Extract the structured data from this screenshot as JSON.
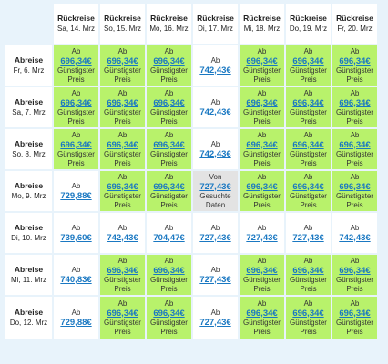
{
  "header": {
    "return_label": "Rückreise",
    "columns": [
      "Sa, 14. Mrz",
      "So, 15. Mrz",
      "Mo, 16. Mrz",
      "Di, 17. Mrz",
      "Mi, 18. Mrz",
      "Do, 19. Mrz",
      "Fr, 20. Mrz"
    ]
  },
  "departure_label": "Abreise",
  "rows": [
    {
      "date": "Fr, 6. Mrz",
      "cells": [
        {
          "prefix": "Ab",
          "price": "696,34€",
          "note": "Günstigster Preis",
          "state": "cheap"
        },
        {
          "prefix": "Ab",
          "price": "696,34€",
          "note": "Günstigster Preis",
          "state": "cheap"
        },
        {
          "prefix": "Ab",
          "price": "696,34€",
          "note": "Günstigster Preis",
          "state": "cheap"
        },
        {
          "prefix": "Ab",
          "price": "742,43€",
          "note": "",
          "state": "normal"
        },
        {
          "prefix": "Ab",
          "price": "696,34€",
          "note": "Günstigster Preis",
          "state": "cheap"
        },
        {
          "prefix": "Ab",
          "price": "696,34€",
          "note": "Günstigster Preis",
          "state": "cheap"
        },
        {
          "prefix": "Ab",
          "price": "696,34€",
          "note": "Günstigster Preis",
          "state": "cheap"
        }
      ]
    },
    {
      "date": "Sa, 7. Mrz",
      "cells": [
        {
          "prefix": "Ab",
          "price": "696,34€",
          "note": "Günstigster Preis",
          "state": "cheap"
        },
        {
          "prefix": "Ab",
          "price": "696,34€",
          "note": "Günstigster Preis",
          "state": "cheap"
        },
        {
          "prefix": "Ab",
          "price": "696,34€",
          "note": "Günstigster Preis",
          "state": "cheap"
        },
        {
          "prefix": "Ab",
          "price": "742,43€",
          "note": "",
          "state": "normal"
        },
        {
          "prefix": "Ab",
          "price": "696,34€",
          "note": "Günstigster Preis",
          "state": "cheap"
        },
        {
          "prefix": "Ab",
          "price": "696,34€",
          "note": "Günstigster Preis",
          "state": "cheap"
        },
        {
          "prefix": "Ab",
          "price": "696,34€",
          "note": "Günstigster Preis",
          "state": "cheap"
        }
      ]
    },
    {
      "date": "So, 8. Mrz",
      "cells": [
        {
          "prefix": "Ab",
          "price": "696,34€",
          "note": "Günstigster Preis",
          "state": "cheap"
        },
        {
          "prefix": "Ab",
          "price": "696,34€",
          "note": "Günstigster Preis",
          "state": "cheap"
        },
        {
          "prefix": "Ab",
          "price": "696,34€",
          "note": "Günstigster Preis",
          "state": "cheap"
        },
        {
          "prefix": "Ab",
          "price": "742,43€",
          "note": "",
          "state": "normal"
        },
        {
          "prefix": "Ab",
          "price": "696,34€",
          "note": "Günstigster Preis",
          "state": "cheap"
        },
        {
          "prefix": "Ab",
          "price": "696,34€",
          "note": "Günstigster Preis",
          "state": "cheap"
        },
        {
          "prefix": "Ab",
          "price": "696,34€",
          "note": "Günstigster Preis",
          "state": "cheap"
        }
      ]
    },
    {
      "date": "Mo, 9. Mrz",
      "cells": [
        {
          "prefix": "Ab",
          "price": "729,88€",
          "note": "",
          "state": "normal"
        },
        {
          "prefix": "Ab",
          "price": "696,34€",
          "note": "Günstigster Preis",
          "state": "cheap"
        },
        {
          "prefix": "Ab",
          "price": "696,34€",
          "note": "Günstigster Preis",
          "state": "cheap"
        },
        {
          "prefix": "Von",
          "price": "727,43€",
          "note": "Gesuchte Daten",
          "state": "selected"
        },
        {
          "prefix": "Ab",
          "price": "696,34€",
          "note": "Günstigster Preis",
          "state": "cheap"
        },
        {
          "prefix": "Ab",
          "price": "696,34€",
          "note": "Günstigster Preis",
          "state": "cheap"
        },
        {
          "prefix": "Ab",
          "price": "696,34€",
          "note": "Günstigster Preis",
          "state": "cheap"
        }
      ]
    },
    {
      "date": "Di, 10. Mrz",
      "cells": [
        {
          "prefix": "Ab",
          "price": "739,60€",
          "note": "",
          "state": "normal"
        },
        {
          "prefix": "Ab",
          "price": "742,43€",
          "note": "",
          "state": "normal"
        },
        {
          "prefix": "Ab",
          "price": "704,47€",
          "note": "",
          "state": "normal"
        },
        {
          "prefix": "Ab",
          "price": "727,43€",
          "note": "",
          "state": "normal"
        },
        {
          "prefix": "Ab",
          "price": "727,43€",
          "note": "",
          "state": "normal"
        },
        {
          "prefix": "Ab",
          "price": "727,43€",
          "note": "",
          "state": "normal"
        },
        {
          "prefix": "Ab",
          "price": "742,43€",
          "note": "",
          "state": "normal"
        }
      ]
    },
    {
      "date": "Mi, 11. Mrz",
      "cells": [
        {
          "prefix": "Ab",
          "price": "740,83€",
          "note": "",
          "state": "normal"
        },
        {
          "prefix": "Ab",
          "price": "696,34€",
          "note": "Günstigster Preis",
          "state": "cheap"
        },
        {
          "prefix": "Ab",
          "price": "696,34€",
          "note": "Günstigster Preis",
          "state": "cheap"
        },
        {
          "prefix": "Ab",
          "price": "727,43€",
          "note": "",
          "state": "normal"
        },
        {
          "prefix": "Ab",
          "price": "696,34€",
          "note": "Günstigster Preis",
          "state": "cheap"
        },
        {
          "prefix": "Ab",
          "price": "696,34€",
          "note": "Günstigster Preis",
          "state": "cheap"
        },
        {
          "prefix": "Ab",
          "price": "696,34€",
          "note": "Günstigster Preis",
          "state": "cheap"
        }
      ]
    },
    {
      "date": "Do, 12. Mrz",
      "cells": [
        {
          "prefix": "Ab",
          "price": "729,88€",
          "note": "",
          "state": "normal"
        },
        {
          "prefix": "Ab",
          "price": "696,34€",
          "note": "Günstigster Preis",
          "state": "cheap"
        },
        {
          "prefix": "Ab",
          "price": "696,34€",
          "note": "Günstigster Preis",
          "state": "cheap"
        },
        {
          "prefix": "Ab",
          "price": "727,43€",
          "note": "",
          "state": "normal"
        },
        {
          "prefix": "Ab",
          "price": "696,34€",
          "note": "Günstigster Preis",
          "state": "cheap"
        },
        {
          "prefix": "Ab",
          "price": "696,34€",
          "note": "Günstigster Preis",
          "state": "cheap"
        },
        {
          "prefix": "Ab",
          "price": "696,34€",
          "note": "Günstigster Preis",
          "state": "cheap"
        }
      ]
    }
  ]
}
